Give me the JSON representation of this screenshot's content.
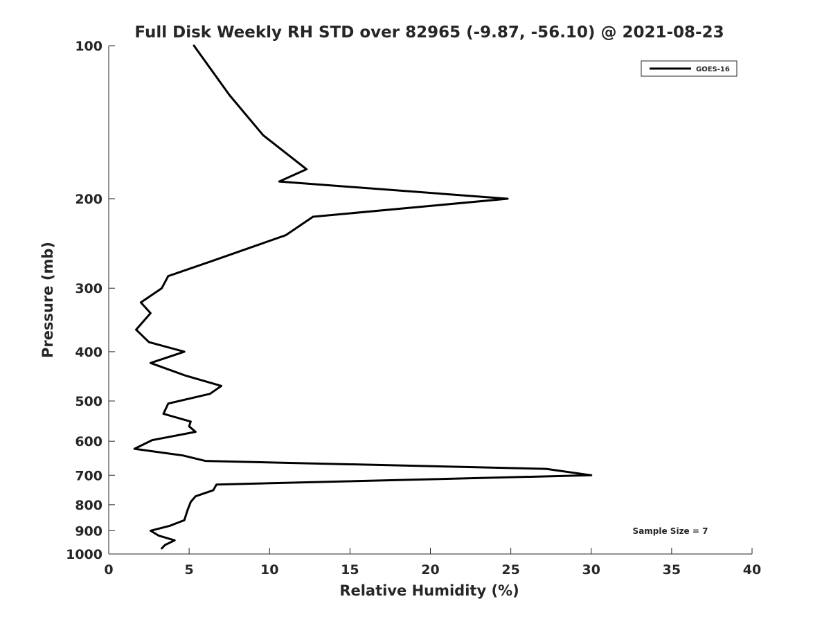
{
  "chart_data": {
    "type": "line",
    "title": "Full Disk Weekly RH STD over 82965 (-9.87, -56.10) @ 2021-08-23",
    "xlabel": "Relative Humidity (%)",
    "ylabel": "Pressure (mb)",
    "xlim": [
      0,
      40
    ],
    "ylim": [
      100,
      1000
    ],
    "y_scale": "log",
    "y_reversed": true,
    "grid": false,
    "x_ticks": [
      0,
      5,
      10,
      15,
      20,
      25,
      30,
      35,
      40
    ],
    "y_ticks": [
      100,
      200,
      300,
      400,
      500,
      600,
      700,
      800,
      900,
      1000
    ],
    "legend": {
      "position": "top-right",
      "entries": [
        "GOES-16"
      ]
    },
    "annotation": "Sample Size = 7",
    "series": [
      {
        "name": "GOES-16",
        "color": "#000000",
        "points": [
          [
            5.3,
            100
          ],
          [
            7.5,
            125
          ],
          [
            9.6,
            150
          ],
          [
            12.3,
            175
          ],
          [
            10.6,
            185
          ],
          [
            24.8,
            200
          ],
          [
            12.7,
            217
          ],
          [
            11.0,
            236
          ],
          [
            6.3,
            266
          ],
          [
            3.7,
            284
          ],
          [
            3.3,
            300
          ],
          [
            2.0,
            320
          ],
          [
            2.6,
            336
          ],
          [
            1.7,
            362
          ],
          [
            2.5,
            383
          ],
          [
            4.7,
            400
          ],
          [
            2.6,
            421
          ],
          [
            4.8,
            446
          ],
          [
            7.0,
            467
          ],
          [
            6.3,
            484
          ],
          [
            3.7,
            506
          ],
          [
            3.4,
            530
          ],
          [
            5.1,
            549
          ],
          [
            5.0,
            561
          ],
          [
            5.4,
            575
          ],
          [
            2.7,
            597
          ],
          [
            1.6,
            621
          ],
          [
            4.6,
            640
          ],
          [
            6.0,
            656
          ],
          [
            27.2,
            680
          ],
          [
            30.0,
            700
          ],
          [
            6.7,
            730
          ],
          [
            6.5,
            749
          ],
          [
            5.4,
            770
          ],
          [
            5.1,
            790
          ],
          [
            4.9,
            820
          ],
          [
            4.7,
            858
          ],
          [
            3.8,
            880
          ],
          [
            2.6,
            900
          ],
          [
            3.1,
            920
          ],
          [
            4.1,
            940
          ],
          [
            3.5,
            960
          ],
          [
            3.3,
            975
          ]
        ]
      }
    ]
  }
}
